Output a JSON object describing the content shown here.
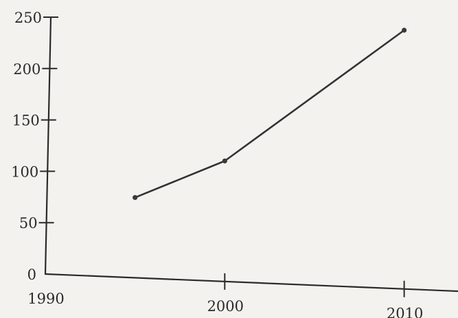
{
  "chart_data": {
    "type": "line",
    "title": "",
    "xlabel": "",
    "ylabel": "",
    "xlim": [
      1990,
      2013
    ],
    "ylim": [
      0,
      250
    ],
    "x_ticks": [
      1990,
      2000,
      2010
    ],
    "y_ticks": [
      0,
      50,
      100,
      150,
      200,
      250
    ],
    "x_tick_labels": [
      "1990",
      "2000",
      "2010"
    ],
    "y_tick_labels": [
      "0",
      "50",
      "100",
      "150",
      "200",
      "250"
    ],
    "grid": false,
    "series": [
      {
        "x": [
          1995,
          2000,
          2010
        ],
        "y": [
          77,
          114,
          238
        ]
      }
    ],
    "colors": {
      "line": "#333333",
      "axis": "#2a2a2a",
      "background": "#f3f2ef"
    }
  }
}
